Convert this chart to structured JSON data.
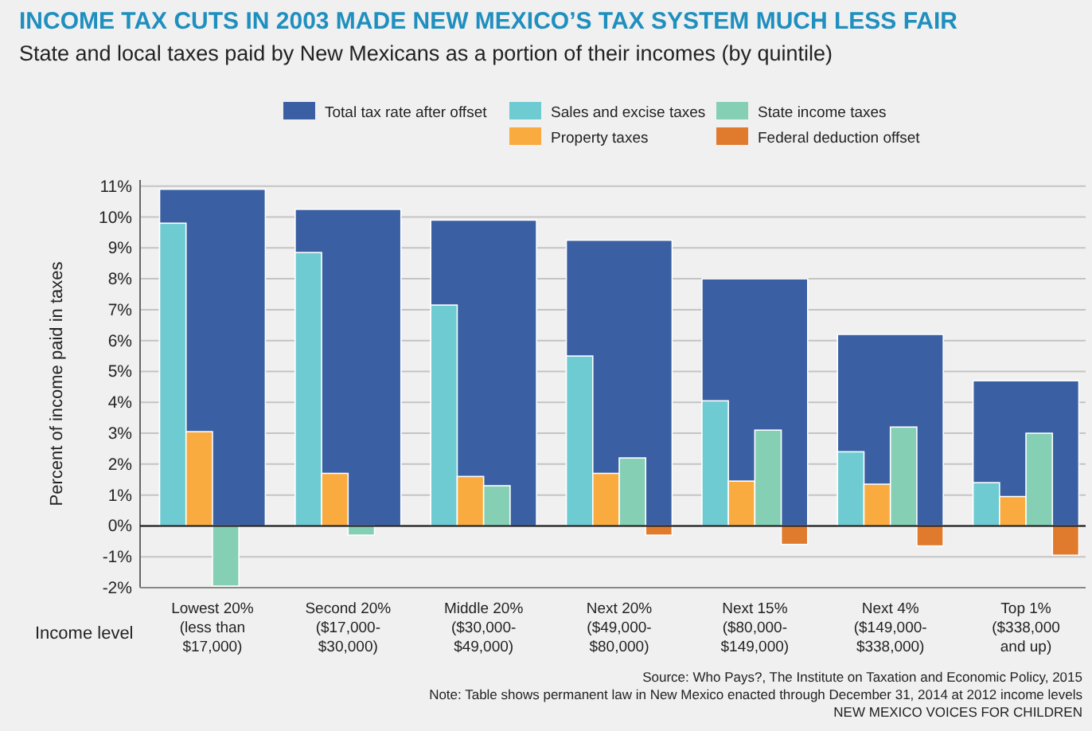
{
  "chart_data": {
    "type": "bar",
    "title": "INCOME TAX CUTS IN 2003 MADE NEW MEXICO’S TAX SYSTEM MUCH LESS FAIR",
    "subtitle": "State and local taxes paid by New Mexicans as a portion of their incomes (by quintile)",
    "xlabel": "Income level",
    "ylabel": "Percent of income paid in taxes",
    "categories": [
      "Lowest 20%\n(less than\n$17,000)",
      "Second 20%\n($17,000-\n$30,000)",
      "Middle 20%\n($30,000-\n$49,000)",
      "Next 20%\n($49,000-\n$80,000)",
      "Next 15%\n($80,000-\n$149,000)",
      "Next 4%\n($149,000-\n$338,000)",
      "Top 1%\n($338,000\nand up)"
    ],
    "series": [
      {
        "name": "Total tax rate after offset",
        "color": "#3a5fa3",
        "values": [
          10.9,
          10.25,
          9.9,
          9.25,
          8.0,
          6.2,
          4.7
        ]
      },
      {
        "name": "Sales and excise taxes",
        "color": "#6ecbd2",
        "values": [
          9.8,
          8.85,
          7.15,
          5.5,
          4.05,
          2.4,
          1.4
        ]
      },
      {
        "name": "Property taxes",
        "color": "#f9ab3f",
        "values": [
          3.05,
          1.7,
          1.6,
          1.7,
          1.45,
          1.35,
          0.95
        ]
      },
      {
        "name": "State income taxes",
        "color": "#85cfb4",
        "values": [
          -1.95,
          -0.3,
          1.3,
          2.2,
          3.1,
          3.2,
          3.0
        ]
      },
      {
        "name": "Federal deduction offset",
        "color": "#e07b2e",
        "values": [
          0,
          0,
          0,
          -0.3,
          -0.6,
          -0.65,
          -0.95
        ]
      }
    ],
    "ylim": [
      -2,
      11.2
    ],
    "yticks": [
      {
        "value": -2,
        "label": "-2%"
      },
      {
        "value": -1,
        "label": "-1%"
      },
      {
        "value": 0,
        "label": "0%"
      },
      {
        "value": 1,
        "label": "1%"
      },
      {
        "value": 2,
        "label": "2%"
      },
      {
        "value": 3,
        "label": "3%"
      },
      {
        "value": 4,
        "label": "4%"
      },
      {
        "value": 5,
        "label": "5%"
      },
      {
        "value": 6,
        "label": "6%"
      },
      {
        "value": 7,
        "label": "7%"
      },
      {
        "value": 8,
        "label": "8%"
      },
      {
        "value": 9,
        "label": "9%"
      },
      {
        "value": 10,
        "label": "10%"
      },
      {
        "value": 11,
        "label": "11%"
      }
    ],
    "grid": "y",
    "legend": "top",
    "annotations": [
      "Source: Who Pays?, The Institute on Taxation and Economic Policy, 2015",
      "Note: Table shows permanent law in New Mexico enacted through December 31, 2014 at 2012 income levels",
      "NEW MEXICO VOICES FOR CHILDREN"
    ]
  }
}
